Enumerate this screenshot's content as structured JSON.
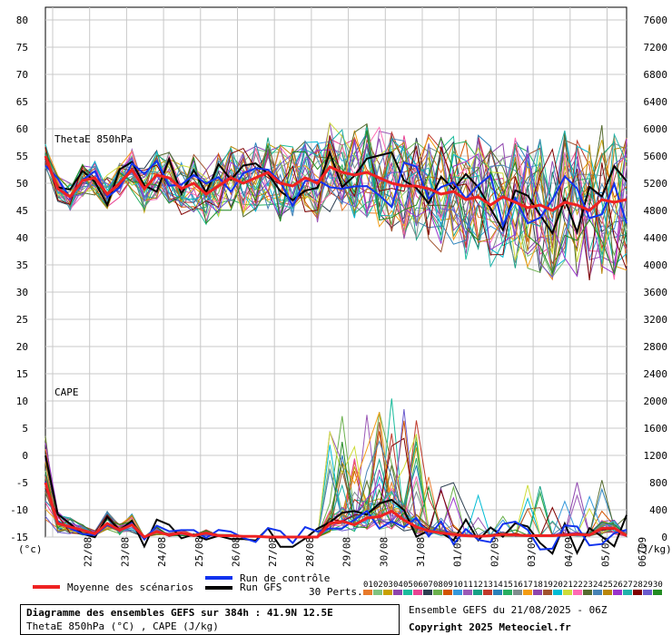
{
  "chart_data": {
    "type": "line",
    "left_axis_unit": "(°c)",
    "right_axis_unit": "(J/kg)",
    "left_ticks": [
      "80",
      "75",
      "70",
      "65",
      "60",
      "55",
      "50",
      "45",
      "40",
      "35",
      "30",
      "25",
      "20",
      "15",
      "10",
      "5",
      "0",
      "-5",
      "-10",
      "-15"
    ],
    "right_ticks": [
      "7600",
      "7200",
      "6800",
      "6400",
      "6000",
      "5600",
      "5200",
      "4800",
      "4400",
      "4000",
      "3600",
      "3200",
      "2800",
      "2400",
      "2000",
      "1600",
      "1200",
      "800",
      "400",
      "0"
    ],
    "x_dates": [
      "22/08",
      "23/08",
      "24/08",
      "25/08",
      "26/08",
      "27/08",
      "28/08",
      "29/08",
      "30/08",
      "31/08",
      "01/09",
      "02/09",
      "03/09",
      "04/09",
      "05/09",
      "06/09"
    ],
    "panel_labels": {
      "thetae": "ThetaE 850hPa",
      "cape": "CAPE"
    },
    "legend": {
      "mean": "Moyenne des scénarios",
      "control": "Run de contrôle",
      "gfs": "Run GFS",
      "perts": "30 Perts.",
      "pert_numbers": [
        "01",
        "02",
        "03",
        "04",
        "05",
        "06",
        "07",
        "08",
        "09",
        "10",
        "11",
        "12",
        "13",
        "14",
        "15",
        "16",
        "17",
        "18",
        "19",
        "20",
        "21",
        "22",
        "23",
        "24",
        "25",
        "26",
        "27",
        "28",
        "29",
        "30"
      ]
    },
    "pert_colors": [
      "#e87a2a",
      "#7fc27f",
      "#c8a000",
      "#8e44ad",
      "#1abc9c",
      "#e84393",
      "#2c3e50",
      "#6ab04c",
      "#d35400",
      "#3498db",
      "#9b59b6",
      "#16a085",
      "#c0392b",
      "#2980b9",
      "#27ae60",
      "#7f8c8d",
      "#f39c12",
      "#8e44ad",
      "#a0522d",
      "#00bcd4",
      "#cddc39",
      "#ff69b4",
      "#556b2f",
      "#4682b4",
      "#b8860b",
      "#9932cc",
      "#20b2aa",
      "#800000",
      "#6a5acd",
      "#228b22"
    ],
    "mean_color": "#ee2222",
    "control_color": "#1133ee",
    "gfs_color": "#000000",
    "thetae_mean": [
      55,
      49,
      47.5,
      50.5,
      51,
      48,
      50,
      52.5,
      49,
      51.5,
      51,
      49,
      50,
      48,
      49.5,
      51,
      50,
      51,
      52,
      50,
      49.5,
      51,
      50,
      53,
      52,
      51.5,
      52,
      51,
      50,
      49.5,
      49.5,
      49,
      48,
      48.5,
      47,
      47.5,
      46,
      47.5,
      46.5,
      45.5,
      46,
      45,
      46.5,
      46,
      45,
      47,
      46.5,
      47
    ],
    "cape_mean_jkg": [
      800,
      200,
      150,
      100,
      50,
      200,
      100,
      180,
      0,
      80,
      30,
      60,
      20,
      60,
      20,
      20,
      10,
      10,
      0,
      0,
      0,
      0,
      0,
      200,
      230,
      180,
      280,
      300,
      380,
      250,
      150,
      90,
      60,
      40,
      20,
      10,
      20,
      40,
      30,
      20,
      20,
      20,
      30,
      40,
      30,
      130,
      130,
      20
    ]
  },
  "title_box": {
    "line1": "Diagramme des ensembles GEFS sur 384h : 41.9N 12.5E",
    "line2": "ThetaE 850hPa (°C) , CAPE (J/kg)"
  },
  "footer": {
    "run_info": "Ensemble GEFS du 21/08/2025 - 06Z",
    "copyright": "Copyright 2025 Meteociel.fr"
  }
}
